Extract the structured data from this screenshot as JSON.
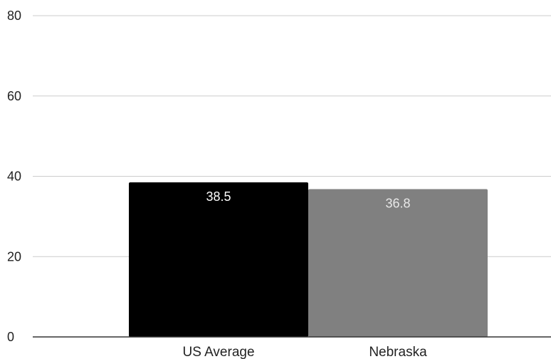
{
  "chart_data": {
    "type": "bar",
    "categories": [
      "US Average",
      "Nebraska"
    ],
    "values": [
      38.5,
      36.8
    ],
    "data_labels": [
      "38.5",
      "36.8"
    ],
    "title": "",
    "xlabel": "",
    "ylabel": "",
    "ylim": [
      0,
      80
    ],
    "yticks": [
      0,
      20,
      40,
      60,
      80
    ],
    "ytick_labels": [
      "0",
      "20",
      "40",
      "60",
      "80"
    ],
    "grid": true,
    "legend": "none",
    "colors": [
      "#000000",
      "#808080"
    ],
    "label_colors": [
      "#ffffff",
      "#e8e8e8"
    ]
  }
}
